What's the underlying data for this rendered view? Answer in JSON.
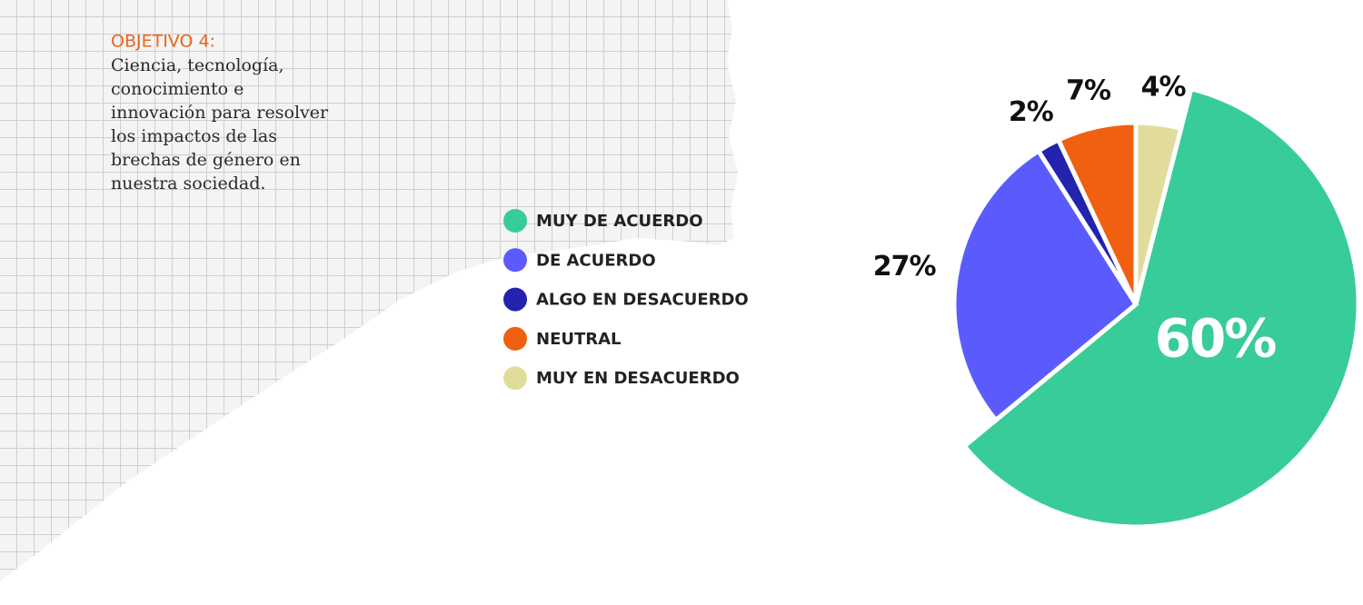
{
  "chart_data": {
    "type": "pie",
    "title": "OBJETIVO 4:",
    "description": [
      "Ciencia, tecnología,",
      "conocimiento e",
      "innovación para resolver",
      "los impactos de las",
      "brechas de género en",
      "nuestra sociedad."
    ],
    "categories": [
      "MUY DE ACUERDO",
      "DE ACUERDO",
      "ALGO EN DESACUERDO",
      "NEUTRAL",
      "MUY EN DESACUERDO"
    ],
    "values": [
      60,
      27,
      2,
      7,
      4
    ],
    "value_labels": [
      "60%",
      "27%",
      "2%",
      "7%",
      "4%"
    ],
    "colors": [
      "#38cc99",
      "#5b5bfd",
      "#2323ad",
      "#f06010",
      "#e2dc9c"
    ]
  }
}
